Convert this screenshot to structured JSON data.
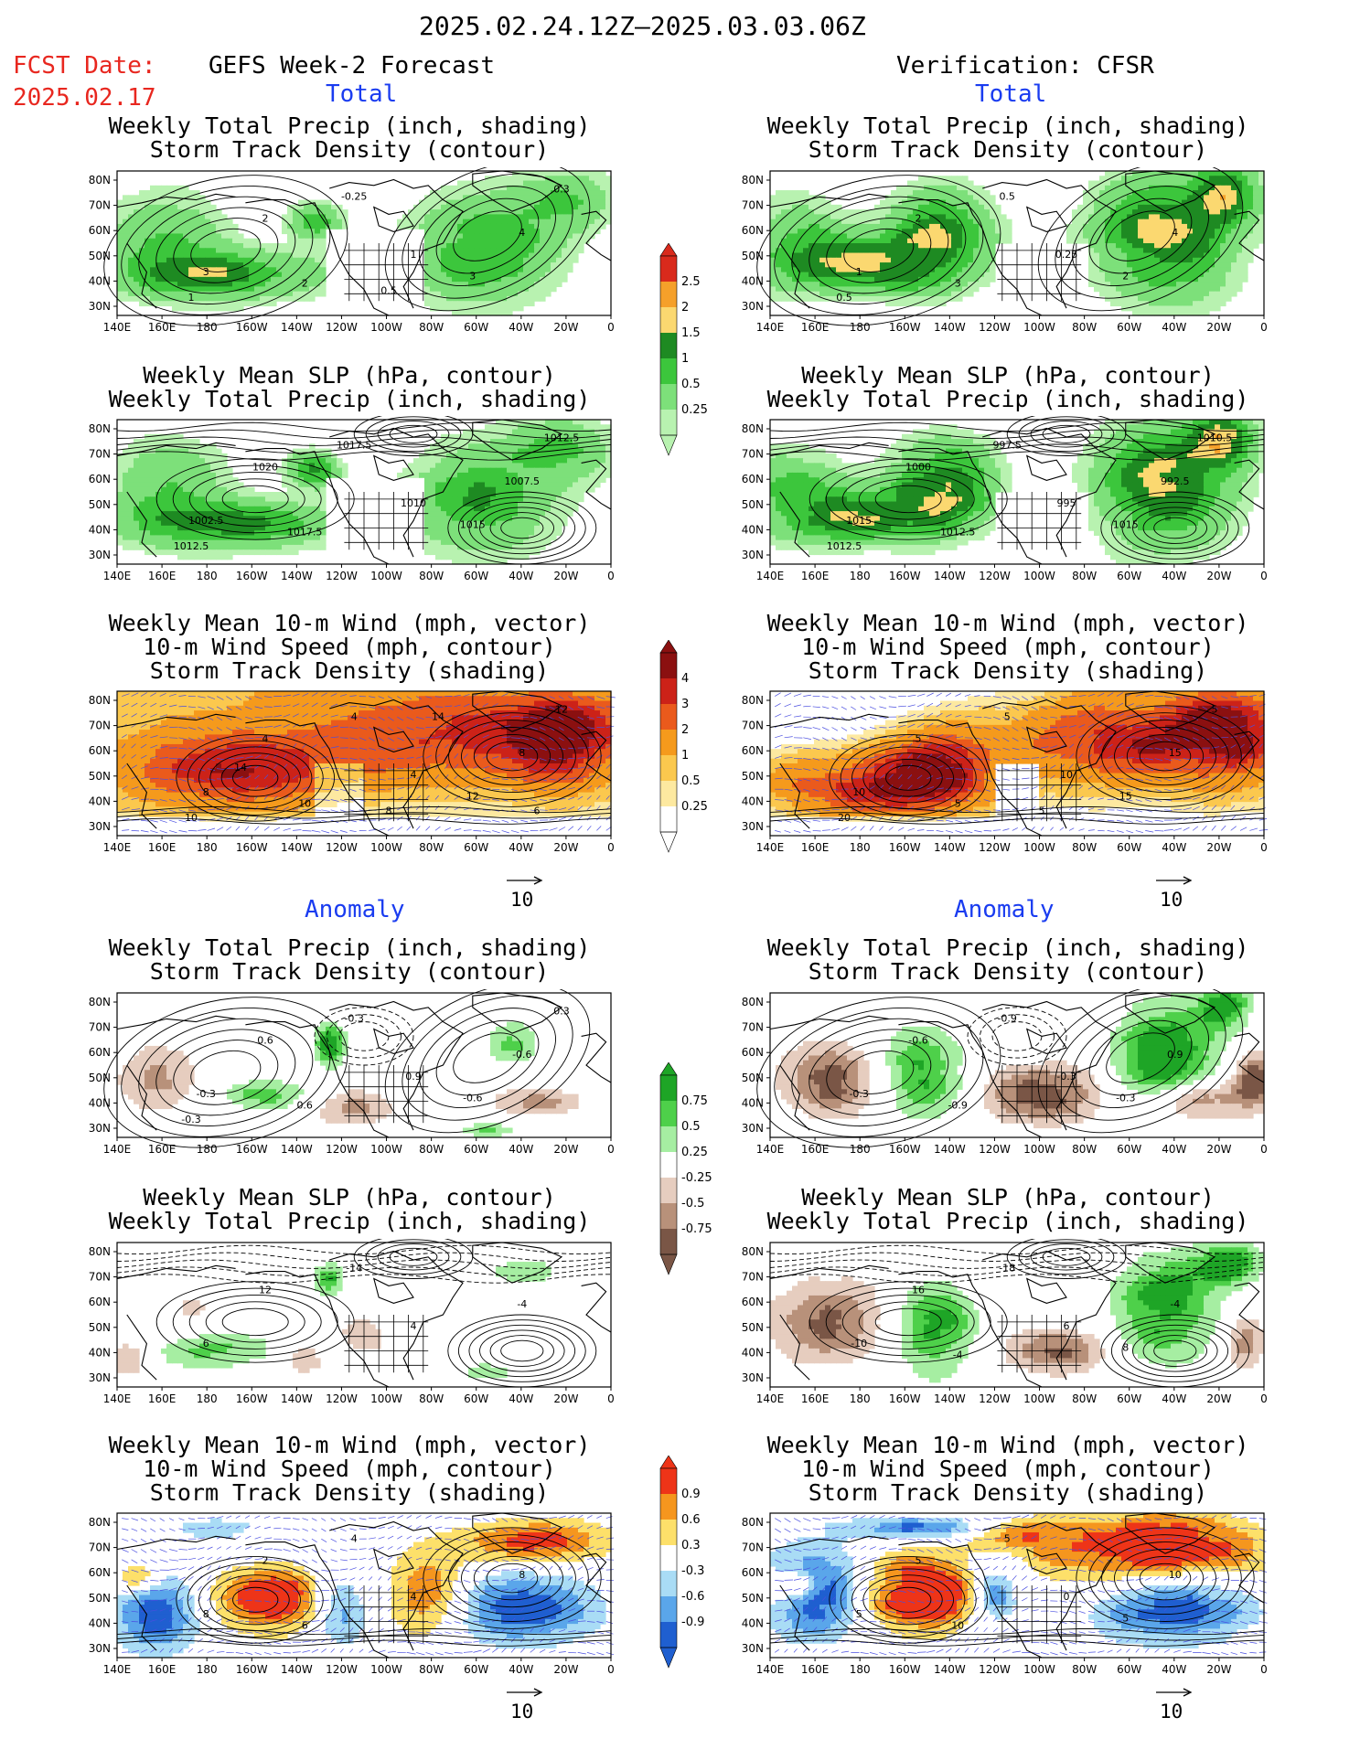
{
  "header": {
    "date_range": "2025.02.24.12Z–2025.03.03.06Z",
    "fcst_label": "FCST Date:",
    "fcst_date": "2025.02.17",
    "left_title": "GEFS Week-2 Forecast",
    "right_title": "Verification: CFSR",
    "total_label": "Total",
    "anomaly_label": "Anomaly"
  },
  "panel_titles": {
    "precip": [
      "Weekly Total Precip (inch, shading)",
      "Storm Track Density (contour)"
    ],
    "slp": [
      "Weekly Mean SLP (hPa, contour)",
      "Weekly Total Precip (inch, shading)"
    ],
    "wind": [
      "Weekly Mean 10-m Wind (mph, vector)",
      "10-m Wind Speed (mph, contour)",
      "Storm Track Density (shading)"
    ]
  },
  "axes": {
    "lat_labels": [
      "80N",
      "70N",
      "60N",
      "50N",
      "40N",
      "30N"
    ],
    "lon_labels": [
      "140E",
      "160E",
      "180",
      "160W",
      "140W",
      "120W",
      "100W",
      "80W",
      "60W",
      "40W",
      "20W",
      "0"
    ]
  },
  "vector_reference": "10",
  "colorbars": {
    "precip_total": {
      "labels": [
        "2.5",
        "2",
        "1.5",
        "1",
        "0.5",
        "0.25"
      ],
      "colors": [
        "#d92a1c",
        "#f5a02a",
        "#fbd870",
        "#1e8a22",
        "#3cc63c",
        "#7de07a",
        "#b8f2b0"
      ]
    },
    "track_total": {
      "labels": [
        "4",
        "3",
        "2",
        "1",
        "0.5",
        "0.25"
      ],
      "colors": [
        "#8b1010",
        "#cc2218",
        "#ea5a1c",
        "#f59a1c",
        "#fbc84e",
        "#fde9a0",
        "#ffffff"
      ]
    },
    "precip_anom": {
      "labels": [
        "0.75",
        "0.5",
        "0.25",
        "-0.25",
        "-0.5",
        "-0.75"
      ],
      "colors": [
        "#1ea526",
        "#4ed04a",
        "#a6eea2",
        "#ffffff",
        "#e6cdbf",
        "#b8917a",
        "#7a5646"
      ]
    },
    "track_anom": {
      "labels": [
        "0.9",
        "0.6",
        "0.3",
        "-0.3",
        "-0.6",
        "-0.9"
      ],
      "colors": [
        "#ee3418",
        "#f5961e",
        "#fde06a",
        "#ffffff",
        "#a9dcf5",
        "#5aa6ea",
        "#1f5fd0"
      ]
    }
  },
  "contour_labels": {
    "fcst_precip_total": [
      "2",
      "-0.25",
      "1",
      "4",
      "3",
      "2",
      "3",
      "1",
      "0.3",
      "0.5"
    ],
    "fcst_slp_total": [
      "1020",
      "1017.5",
      "1010",
      "1007.5",
      "1002.5",
      "1017.5",
      "1015",
      "1012.5",
      "1012.5"
    ],
    "fcst_wind_total": [
      "4",
      "4",
      "4",
      "8",
      "8",
      "10",
      "12",
      "10",
      "12",
      "8",
      "14",
      "14",
      "6"
    ],
    "fcst_precip_anom": [
      "0.6",
      "-0.3",
      "0.9",
      "-0.6",
      "-0.3",
      "0.6",
      "-0.6",
      "-0.3",
      "0.3"
    ],
    "fcst_slp_anom": [
      "12",
      "-14",
      "4",
      "-4",
      "6"
    ],
    "fcst_wind_anom": [
      "2",
      "4",
      "4",
      "8",
      "8",
      "6"
    ],
    "verif_precip_total": [
      "2",
      "0.5",
      "0.25",
      "4",
      "1",
      "3",
      "2",
      "0.5"
    ],
    "verif_slp_total": [
      "1000",
      "997.5",
      "995",
      "992.5",
      "1015",
      "1012.5",
      "1015",
      "1012.5",
      "1010.5"
    ],
    "verif_wind_total": [
      "5",
      "5",
      "10",
      "15",
      "10",
      "5",
      "15",
      "20",
      "5",
      "5"
    ],
    "verif_precip_anom": [
      "-0.6",
      "-0.9",
      "-0.3",
      "0.9",
      "-0.3",
      "-0.9",
      "-0.3"
    ],
    "verif_slp_anom": [
      "16",
      "-18",
      "6",
      "-4",
      "-10",
      "-4",
      "8"
    ],
    "verif_wind_anom": [
      "5",
      "5",
      "0",
      "10",
      "5",
      "10",
      "5"
    ]
  }
}
